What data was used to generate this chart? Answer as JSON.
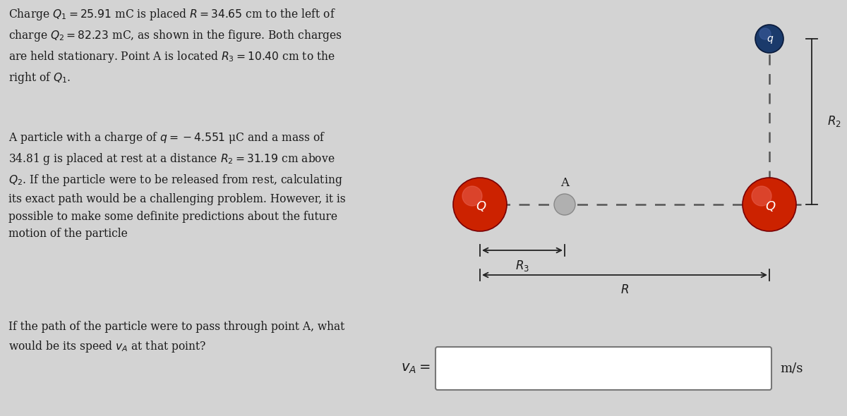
{
  "bg_color": "#d3d3d3",
  "text_color": "#1a1a1a",
  "paragraph1": "Charge $Q_1 = 25.91$ mC is placed $R = 34.65$ cm to the left of\ncharge $Q_2 = 82.23$ mC, as shown in the figure. Both charges\nare held stationary. Point A is located $R_3 = 10.40$ cm to the\nright of $Q_1$.",
  "paragraph2": "A particle with a charge of $q = -4.551$ μC and a mass of\n34.81 g is placed at rest at a distance $R_2 = 31.19$ cm above\n$Q_2$. If the particle were to be released from rest, calculating\nits exact path would be a challenging problem. However, it is\npossible to make some definite predictions about the future\nmotion of the particle",
  "paragraph3": "If the path of the particle were to pass through point A, what\nwould be its speed $v_A$ at that point?",
  "answer_label": "$v_A =$",
  "answer_unit": "m/s",
  "Q1_color": "#cc2200",
  "Q2_color": "#cc2200",
  "q_color": "#1a3a6b",
  "A_color": "#b0b0b0",
  "dashed_color": "#555555",
  "arrow_color": "#222222"
}
